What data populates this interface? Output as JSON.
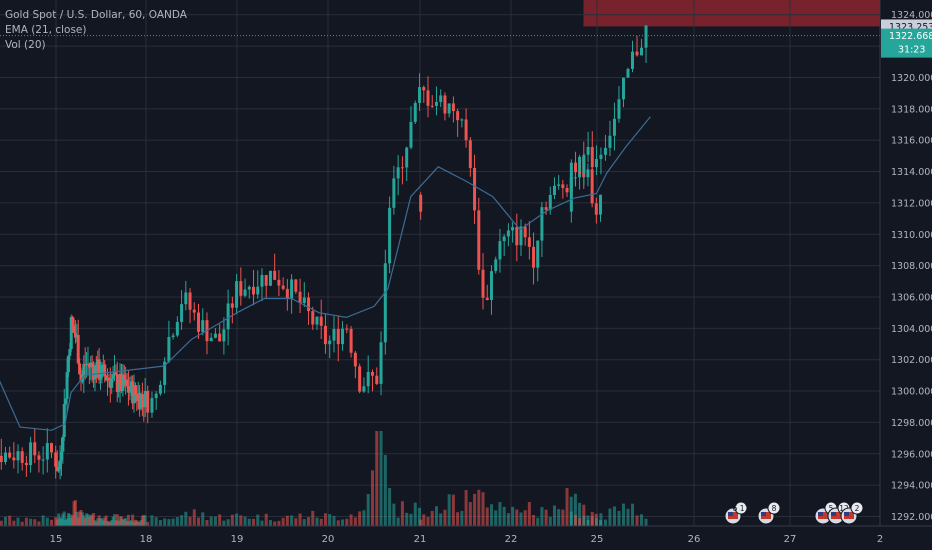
{
  "legend": {
    "symbol": "Gold Spot / U.S. Dollar, 60, OANDA",
    "ema": "EMA (21, close)",
    "vol": "Vol (20)"
  },
  "price_axis": {
    "ticks": [
      "1292.000",
      "1294.000",
      "1296.000",
      "1298.000",
      "1300.000",
      "1302.000",
      "1304.000",
      "1306.000",
      "1308.000",
      "1310.000",
      "1312.000",
      "1314.000",
      "1316.000",
      "1318.000",
      "1320.000",
      "1322.000",
      "1324.000"
    ],
    "target_label": "1323.253",
    "last_price_label": "1322.668",
    "countdown_label": "31:23"
  },
  "time_axis": {
    "ticks": [
      "15",
      "18",
      "19",
      "20",
      "21",
      "22",
      "25",
      "26",
      "27",
      "2"
    ]
  },
  "events": {
    "badges": [
      "6 11",
      "8",
      "5",
      "12",
      "2"
    ]
  },
  "colors": {
    "background": "#131722",
    "up": "#26a69a",
    "down": "#ef5350",
    "ema": "#3c6c96",
    "grid": "#2a2e39",
    "target_zone": "#8b2530",
    "projection_zone": "#2f4f8f",
    "axis_text": "#b2b5be"
  },
  "chart_data": {
    "type": "candlestick",
    "title": "Gold Spot / U.S. Dollar, 60, OANDA",
    "ylim": [
      1291,
      1325
    ],
    "x_categories": [
      "15",
      "18",
      "19",
      "20",
      "21",
      "22",
      "25",
      "26",
      "27"
    ],
    "indicators": [
      "EMA (21, close)",
      "Vol (20)"
    ],
    "close_path": [
      [
        14.95,
        1296.0
      ],
      [
        15.1,
        1294.8
      ],
      [
        15.3,
        1299.5
      ],
      [
        15.5,
        1304.3
      ],
      [
        15.7,
        1303.2
      ],
      [
        15.85,
        1300.4
      ],
      [
        15.95,
        1301.8
      ],
      [
        18.1,
        1299.3
      ],
      [
        18.2,
        1302.5
      ],
      [
        18.4,
        1306.0
      ],
      [
        18.6,
        1304.2
      ],
      [
        18.8,
        1303.1
      ],
      [
        19.0,
        1306.5
      ],
      [
        19.2,
        1307.0
      ],
      [
        19.4,
        1307.5
      ],
      [
        19.6,
        1306.4
      ],
      [
        19.8,
        1304.7
      ],
      [
        20.0,
        1303.0
      ],
      [
        20.2,
        1304.3
      ],
      [
        20.35,
        1300.5
      ],
      [
        20.55,
        1300.9
      ],
      [
        20.65,
        1311.5
      ],
      [
        21.0,
        1319.0
      ],
      [
        21.2,
        1318.5
      ],
      [
        21.4,
        1318.0
      ],
      [
        21.55,
        1315.0
      ],
      [
        21.6,
        1311.0
      ],
      [
        21.7,
        1305.3
      ],
      [
        21.85,
        1309.2
      ],
      [
        22.0,
        1309.9
      ],
      [
        22.15,
        1310.0
      ],
      [
        22.25,
        1308.6
      ],
      [
        22.35,
        1312.0
      ],
      [
        22.55,
        1313.0
      ],
      [
        22.8,
        1314.5
      ],
      [
        22.95,
        1311.7
      ],
      [
        25.0,
        1315.0
      ],
      [
        25.2,
        1317.5
      ],
      [
        25.35,
        1321.0
      ],
      [
        25.5,
        1323.0
      ]
    ],
    "ema_path": [
      [
        14.3,
        1301.6
      ],
      [
        14.6,
        1297.7
      ],
      [
        14.95,
        1297.5
      ],
      [
        15.3,
        1297.9
      ],
      [
        15.5,
        1299.9
      ],
      [
        15.95,
        1301.0
      ],
      [
        18.2,
        1301.6
      ],
      [
        18.5,
        1303.3
      ],
      [
        18.8,
        1304.3
      ],
      [
        19.0,
        1305.0
      ],
      [
        19.3,
        1305.9
      ],
      [
        19.6,
        1305.9
      ],
      [
        19.9,
        1305.0
      ],
      [
        20.2,
        1304.7
      ],
      [
        20.5,
        1305.4
      ],
      [
        20.65,
        1306.5
      ],
      [
        20.9,
        1312.4
      ],
      [
        21.2,
        1314.3
      ],
      [
        21.5,
        1313.4
      ],
      [
        21.8,
        1312.4
      ],
      [
        22.1,
        1310.3
      ],
      [
        22.4,
        1311.5
      ],
      [
        22.7,
        1312.3
      ],
      [
        22.95,
        1312.6
      ],
      [
        25.1,
        1313.9
      ],
      [
        25.3,
        1315.6
      ],
      [
        25.55,
        1317.5
      ]
    ],
    "volume_path": [
      [
        15.0,
        8
      ],
      [
        15.4,
        14
      ],
      [
        15.6,
        22
      ],
      [
        15.9,
        10
      ],
      [
        18.2,
        8
      ],
      [
        18.5,
        14
      ],
      [
        18.8,
        10
      ],
      [
        19.1,
        11
      ],
      [
        19.5,
        9
      ],
      [
        19.8,
        12
      ],
      [
        20.1,
        10
      ],
      [
        20.4,
        16
      ],
      [
        20.55,
        95
      ],
      [
        20.7,
        18
      ],
      [
        21.1,
        20
      ],
      [
        21.4,
        26
      ],
      [
        21.6,
        30
      ],
      [
        21.8,
        22
      ],
      [
        22.1,
        20
      ],
      [
        22.4,
        16
      ],
      [
        22.6,
        30
      ],
      [
        22.8,
        20
      ],
      [
        23.0,
        6
      ],
      [
        25.0,
        12
      ],
      [
        25.3,
        18
      ],
      [
        25.55,
        14
      ]
    ],
    "target_zone": {
      "y_from": 1323.253,
      "y_to": 1325.0
    },
    "projection_zone": {
      "y_from": 1291.0,
      "y_to": 1323.253,
      "x_from": 24.85
    },
    "last_price": 1322.668,
    "grid": true
  }
}
